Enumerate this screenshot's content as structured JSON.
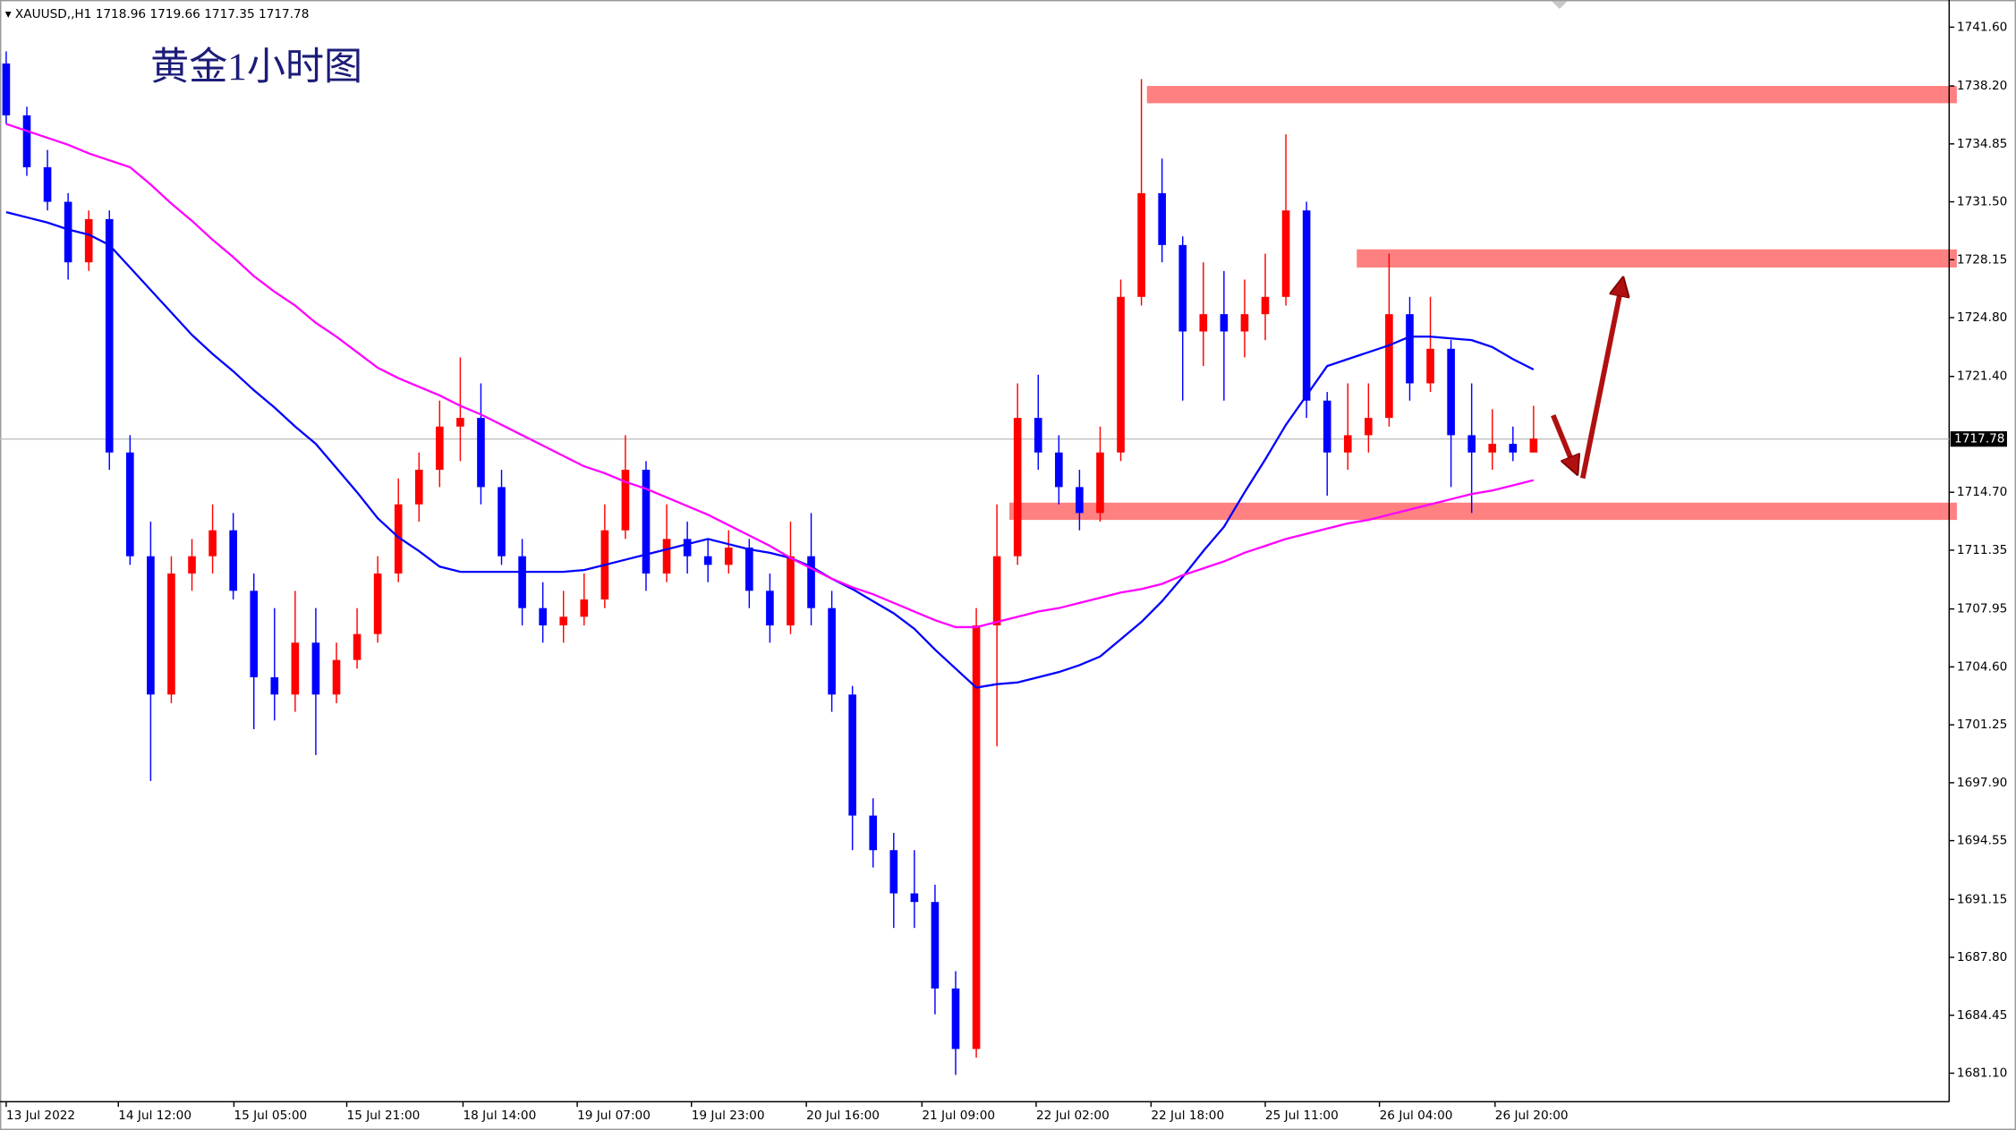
{
  "chart_data": {
    "type": "candlestick",
    "title": "黄金1小时图",
    "symbol": "XAUUSD,,H1",
    "header_ohlc": [
      1718.96,
      1719.66,
      1717.35,
      1717.78
    ],
    "x": [
      0,
      3,
      6,
      9,
      12,
      15,
      18,
      21,
      24,
      27,
      30,
      33,
      36,
      39,
      42,
      45,
      48,
      51,
      54,
      57,
      60,
      63,
      66,
      69,
      72,
      75,
      78,
      81,
      84,
      87,
      90,
      93,
      96,
      99,
      102,
      105,
      108,
      111,
      114,
      117,
      120,
      123,
      126,
      129,
      132,
      135,
      138,
      141,
      144,
      147,
      150,
      153,
      156,
      159,
      162,
      165,
      168,
      171,
      174,
      177,
      180,
      183,
      186,
      189,
      192,
      195,
      198,
      201,
      204,
      207,
      210,
      213,
      216,
      219,
      222
    ],
    "open": [
      1739.5,
      1736.5,
      1733.5,
      1731.5,
      1728.0,
      1730.5,
      1717.0,
      1711.0,
      1703.0,
      1710.0,
      1711.0,
      1712.5,
      1709.0,
      1704.0,
      1703.0,
      1706.0,
      1703.0,
      1705.0,
      1706.5,
      1710.0,
      1714.0,
      1716.0,
      1718.5,
      1719.0,
      1715.0,
      1711.0,
      1708.0,
      1707.0,
      1707.5,
      1708.5,
      1712.5,
      1716.0,
      1710.0,
      1712.0,
      1711.0,
      1710.5,
      1711.5,
      1709.0,
      1707.0,
      1711.0,
      1708.0,
      1703.0,
      1696.0,
      1694.0,
      1691.5,
      1691.0,
      1686.0,
      1682.5,
      1707.0,
      1711.0,
      1719.0,
      1717.0,
      1715.0,
      1713.5,
      1717.0,
      1726.0,
      1732.0,
      1729.0,
      1724.0,
      1725.0,
      1724.0,
      1725.0,
      1726.0,
      1731.0,
      1720.0,
      1717.0,
      1718.0,
      1719.0,
      1725.0,
      1721.0,
      1723.0,
      1718.0,
      1717.0,
      1717.5,
      1717.0
    ],
    "high": [
      1740.2,
      1737.0,
      1734.5,
      1732.0,
      1731.0,
      1731.0,
      1718.0,
      1713.0,
      1711.0,
      1712.0,
      1714.0,
      1713.5,
      1710.0,
      1708.0,
      1709.0,
      1708.0,
      1706.0,
      1708.0,
      1711.0,
      1715.5,
      1717.0,
      1720.0,
      1722.5,
      1721.0,
      1716.0,
      1712.0,
      1709.5,
      1709.0,
      1710.0,
      1714.0,
      1718.0,
      1716.5,
      1714.0,
      1713.0,
      1712.0,
      1712.5,
      1712.0,
      1710.0,
      1713.0,
      1713.5,
      1709.0,
      1703.5,
      1697.0,
      1695.0,
      1694.0,
      1692.0,
      1687.0,
      1708.0,
      1714.0,
      1721.0,
      1721.5,
      1718.0,
      1716.0,
      1718.5,
      1727.0,
      1738.6,
      1734.0,
      1729.5,
      1728.0,
      1727.5,
      1727.0,
      1728.5,
      1735.4,
      1731.5,
      1720.5,
      1721.0,
      1721.0,
      1728.5,
      1726.0,
      1726.0,
      1723.5,
      1721.0,
      1719.5,
      1718.5,
      1719.7
    ],
    "low": [
      1736.0,
      1733.0,
      1731.0,
      1727.0,
      1727.5,
      1716.0,
      1710.5,
      1698.0,
      1702.5,
      1709.0,
      1710.0,
      1708.5,
      1701.0,
      1701.5,
      1702.0,
      1699.5,
      1702.5,
      1704.5,
      1706.0,
      1709.5,
      1713.0,
      1715.0,
      1716.5,
      1714.0,
      1710.5,
      1707.0,
      1706.0,
      1706.0,
      1707.0,
      1708.0,
      1712.0,
      1709.0,
      1709.5,
      1710.0,
      1709.5,
      1710.0,
      1708.0,
      1706.0,
      1706.5,
      1707.0,
      1702.0,
      1694.0,
      1693.0,
      1689.5,
      1689.5,
      1684.5,
      1681.0,
      1682.0,
      1700.0,
      1710.5,
      1716.0,
      1714.0,
      1712.5,
      1713.0,
      1716.5,
      1725.5,
      1728.0,
      1720.0,
      1722.0,
      1720.0,
      1722.5,
      1723.5,
      1725.5,
      1719.0,
      1714.5,
      1716.0,
      1717.0,
      1718.5,
      1720.0,
      1720.5,
      1715.0,
      1713.5,
      1716.0,
      1716.5,
      1717.0
    ],
    "close": [
      1736.5,
      1733.5,
      1731.5,
      1728.0,
      1730.5,
      1717.0,
      1711.0,
      1703.0,
      1710.0,
      1711.0,
      1712.5,
      1709.0,
      1704.0,
      1703.0,
      1706.0,
      1703.0,
      1705.0,
      1706.5,
      1710.0,
      1714.0,
      1716.0,
      1718.5,
      1719.0,
      1715.0,
      1711.0,
      1708.0,
      1707.0,
      1707.5,
      1708.5,
      1712.5,
      1716.0,
      1710.0,
      1712.0,
      1711.0,
      1710.5,
      1711.5,
      1709.0,
      1707.0,
      1711.0,
      1708.0,
      1703.0,
      1696.0,
      1694.0,
      1691.5,
      1691.0,
      1686.0,
      1682.5,
      1707.0,
      1711.0,
      1719.0,
      1717.0,
      1715.0,
      1713.5,
      1717.0,
      1726.0,
      1732.0,
      1729.0,
      1724.0,
      1725.0,
      1724.0,
      1725.0,
      1726.0,
      1731.0,
      1720.0,
      1717.0,
      1718.0,
      1719.0,
      1725.0,
      1721.0,
      1723.0,
      1718.0,
      1717.0,
      1717.5,
      1717.0,
      1717.8
    ],
    "up_color": "#ff0000",
    "down_color": "#0000ff",
    "lines": [
      {
        "color": "#0000ff",
        "values": [
          1730.9,
          1730.6,
          1730.3,
          1729.9,
          1729.6,
          1729.0,
          1727.7,
          1726.4,
          1725.1,
          1723.8,
          1722.7,
          1721.7,
          1720.6,
          1719.6,
          1718.5,
          1717.5,
          1716.1,
          1714.7,
          1713.2,
          1712.1,
          1711.3,
          1710.4,
          1710.1,
          1710.1,
          1710.1,
          1710.1,
          1710.1,
          1710.1,
          1710.2,
          1710.5,
          1710.8,
          1711.1,
          1711.4,
          1711.7,
          1712.0,
          1711.7,
          1711.4,
          1711.2,
          1710.9,
          1710.4,
          1709.7,
          1709.1,
          1708.4,
          1707.7,
          1706.8,
          1705.6,
          1704.5,
          1703.4,
          1703.6,
          1703.7,
          1704.0,
          1704.3,
          1704.7,
          1705.2,
          1706.2,
          1707.2,
          1708.4,
          1709.8,
          1711.3,
          1712.7,
          1714.7,
          1716.6,
          1718.6,
          1720.3,
          1722.0,
          1722.4,
          1722.8,
          1723.2,
          1723.7,
          1723.7,
          1723.6,
          1723.5,
          1723.1,
          1722.4,
          1721.8
        ]
      },
      {
        "color": "#ff00ff",
        "values": [
          1736.0,
          1735.6,
          1735.2,
          1734.8,
          1734.3,
          1733.9,
          1733.5,
          1732.5,
          1731.4,
          1730.4,
          1729.3,
          1728.3,
          1727.2,
          1726.3,
          1725.5,
          1724.5,
          1723.7,
          1722.8,
          1721.9,
          1721.3,
          1720.8,
          1720.3,
          1719.7,
          1719.2,
          1718.6,
          1718.0,
          1717.4,
          1716.8,
          1716.2,
          1715.8,
          1715.3,
          1714.9,
          1714.4,
          1713.9,
          1713.4,
          1712.8,
          1712.2,
          1711.6,
          1710.9,
          1710.3,
          1709.7,
          1709.2,
          1708.8,
          1708.3,
          1707.8,
          1707.3,
          1706.9,
          1706.9,
          1707.2,
          1707.5,
          1707.8,
          1708.0,
          1708.3,
          1708.6,
          1708.9,
          1709.1,
          1709.4,
          1709.9,
          1710.3,
          1710.7,
          1711.2,
          1711.6,
          1712.0,
          1712.3,
          1712.6,
          1712.9,
          1713.1,
          1713.4,
          1713.7,
          1714.0,
          1714.3,
          1714.6,
          1714.8,
          1715.1,
          1715.4
        ]
      }
    ],
    "zone_color": "#ff8080",
    "zones": [
      {
        "from": 165.8,
        "range": [
          1737.2,
          1738.2
        ]
      },
      {
        "from": 196.3,
        "range": [
          1727.7,
          1728.75
        ]
      },
      {
        "from": 145.8,
        "range": [
          1713.1,
          1714.1
        ]
      }
    ],
    "last_price": 1717.78,
    "xlim": [
      -0.9,
      282.4
    ],
    "xticks": [
      {
        "value": 0,
        "label": "13 Jul 2022"
      },
      {
        "value": 16.3,
        "label": "14 Jul 12:00"
      },
      {
        "value": 33.1,
        "label": "15 Jul 05:00"
      },
      {
        "value": 49.5,
        "label": "15 Jul 21:00"
      },
      {
        "value": 66.4,
        "label": "18 Jul 14:00"
      },
      {
        "value": 83,
        "label": "19 Jul 07:00"
      },
      {
        "value": 99.6,
        "label": "19 Jul 23:00"
      },
      {
        "value": 116.3,
        "label": "20 Jul 16:00"
      },
      {
        "value": 133.1,
        "label": "21 Jul 09:00"
      },
      {
        "value": 149.7,
        "label": "22 Jul 02:00"
      },
      {
        "value": 166.4,
        "label": "22 Jul 18:00"
      },
      {
        "value": 183,
        "label": "25 Jul 11:00"
      },
      {
        "value": 199.6,
        "label": "26 Jul 04:00"
      },
      {
        "value": 216.4,
        "label": "26 Jul 20:00"
      }
    ],
    "ylim": [
      1679.45,
      1742.8
    ],
    "yticks": [
      {
        "value": 1741.6,
        "label": "1741.60"
      },
      {
        "value": 1738.2,
        "label": "1738.20"
      },
      1734.85,
      {
        "value": 1731.5,
        "label": "1731.50"
      },
      1728.15,
      {
        "value": 1724.8,
        "label": "1724.80"
      },
      {
        "value": 1721.4,
        "label": "1721.40"
      },
      {
        "value": 1714.7,
        "label": "1714.70"
      },
      1711.35,
      1707.95,
      {
        "value": 1704.6,
        "label": "1704.60"
      },
      1701.25,
      {
        "value": 1697.9,
        "label": "1697.90"
      },
      1694.55,
      1691.15,
      {
        "value": 1687.8,
        "label": "1687.80"
      },
      1684.45,
      {
        "value": 1681.1,
        "label": "1681.10"
      }
    ]
  }
}
